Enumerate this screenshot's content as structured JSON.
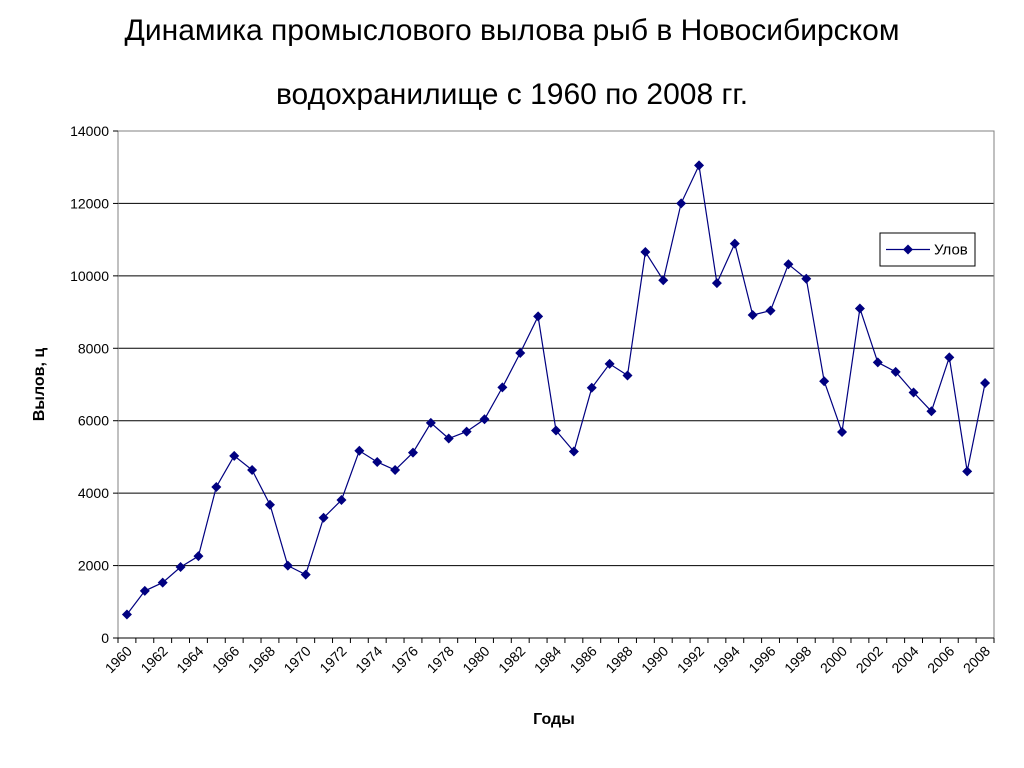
{
  "title_line1": "Динамика промыслового вылова рыб в Новосибирском",
  "title_line2": "водохранилище с 1960 по 2008 гг.",
  "chart_data": {
    "type": "line",
    "xlabel": "Годы",
    "ylabel": "Вылов, ц",
    "ylim": [
      0,
      14000
    ],
    "y_ticks": [
      0,
      2000,
      4000,
      6000,
      8000,
      10000,
      12000,
      14000
    ],
    "x_tick_labels": [
      "1960",
      "1962",
      "1964",
      "1966",
      "1968",
      "1970",
      "1972",
      "1974",
      "1976",
      "1978",
      "1980",
      "1982",
      "1984",
      "1986",
      "1988",
      "1990",
      "1992",
      "1994",
      "1996",
      "1998",
      "2000",
      "2002",
      "2004",
      "2006",
      "2008"
    ],
    "grid": "horizontal",
    "legend_position": "right",
    "series_color": "#000080",
    "series": [
      {
        "name": "Улов",
        "x": [
          1960,
          1961,
          1962,
          1963,
          1964,
          1965,
          1966,
          1967,
          1968,
          1969,
          1970,
          1971,
          1972,
          1973,
          1974,
          1975,
          1976,
          1977,
          1978,
          1979,
          1980,
          1981,
          1982,
          1983,
          1984,
          1985,
          1986,
          1987,
          1988,
          1989,
          1990,
          1991,
          1992,
          1993,
          1994,
          1995,
          1996,
          1997,
          1998,
          1999,
          2000,
          2001,
          2002,
          2003,
          2004,
          2005,
          2006,
          2007,
          2008
        ],
        "values": [
          650,
          1300,
          1530,
          1960,
          2260,
          4170,
          5030,
          4640,
          3680,
          2000,
          1750,
          3320,
          3810,
          5170,
          4860,
          4640,
          5120,
          5940,
          5510,
          5700,
          6040,
          6920,
          7870,
          8880,
          5730,
          5150,
          6910,
          7570,
          7250,
          10660,
          9880,
          12000,
          13050,
          9800,
          10890,
          8920,
          9040,
          10320,
          9920,
          7090,
          5690,
          9100,
          7610,
          7350,
          6780,
          6260,
          7750,
          4600,
          7040
        ]
      }
    ]
  }
}
